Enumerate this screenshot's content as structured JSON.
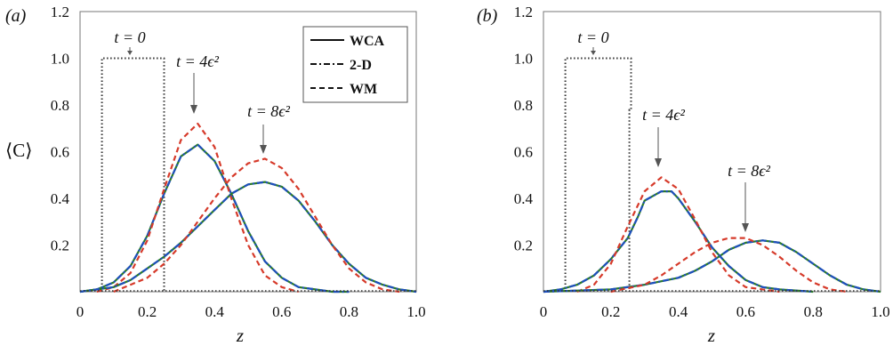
{
  "chart_data": [
    {
      "type": "line",
      "panel_label": "(a)",
      "xlabel": "z",
      "ylabel": "⟨C⟩",
      "xlim": [
        0,
        1.0
      ],
      "ylim": [
        0,
        1.2
      ],
      "x_ticks": [
        "0",
        "0.2",
        "0.4",
        "0.6",
        "0.8",
        "1.0"
      ],
      "y_ticks": [
        "0.2",
        "0.4",
        "0.6",
        "0.8",
        "1.0",
        "1.2"
      ],
      "legend": {
        "position": "top-right",
        "entries": [
          {
            "label": "WCA",
            "style": "solid"
          },
          {
            "label": "2-D",
            "style": "dashdot"
          },
          {
            "label": "WM",
            "style": "dashed"
          }
        ]
      },
      "annotations": [
        {
          "text": "t = 0",
          "x": 0.16,
          "y": 1.08
        },
        {
          "text": "t = 4ϵ²",
          "x": 0.35,
          "y": 1.0
        },
        {
          "text": "t = 8ϵ²",
          "x": 0.55,
          "y": 0.82
        }
      ],
      "series": [
        {
          "name": "t = 0",
          "color": "#333333",
          "style": "dotted",
          "step": true,
          "x": [
            0.065,
            0.065,
            0.25,
            0.25
          ],
          "y": [
            0,
            1.0,
            1.0,
            0
          ]
        },
        {
          "name": "t = 4ϵ² WCA",
          "color": "#2a7a2a",
          "style": "solid",
          "x": [
            0,
            0.05,
            0.1,
            0.15,
            0.2,
            0.25,
            0.3,
            0.35,
            0.4,
            0.45,
            0.5,
            0.55,
            0.6,
            0.65,
            0.7,
            0.75,
            0.8
          ],
          "y": [
            0.0,
            0.01,
            0.04,
            0.11,
            0.24,
            0.42,
            0.58,
            0.63,
            0.56,
            0.42,
            0.26,
            0.13,
            0.06,
            0.02,
            0.01,
            0.0,
            0.0
          ]
        },
        {
          "name": "t = 4ϵ² 2-D",
          "color": "#1f4fbf",
          "style": "dashdot",
          "x": [
            0,
            0.05,
            0.1,
            0.15,
            0.2,
            0.25,
            0.3,
            0.35,
            0.4,
            0.45,
            0.5,
            0.55,
            0.6,
            0.65,
            0.7,
            0.75,
            0.8
          ],
          "y": [
            0.0,
            0.01,
            0.04,
            0.11,
            0.24,
            0.42,
            0.58,
            0.63,
            0.56,
            0.42,
            0.26,
            0.13,
            0.06,
            0.02,
            0.01,
            0.0,
            0.0
          ]
        },
        {
          "name": "t = 4ϵ² WM",
          "color": "#d63a2a",
          "style": "dashed",
          "x": [
            0.05,
            0.1,
            0.15,
            0.2,
            0.25,
            0.3,
            0.35,
            0.4,
            0.45,
            0.5,
            0.55,
            0.6,
            0.65
          ],
          "y": [
            0.0,
            0.02,
            0.08,
            0.22,
            0.44,
            0.65,
            0.72,
            0.62,
            0.4,
            0.2,
            0.07,
            0.02,
            0.0
          ]
        },
        {
          "name": "t = 8ϵ² WCA",
          "color": "#2a7a2a",
          "style": "solid",
          "x": [
            0,
            0.1,
            0.15,
            0.2,
            0.25,
            0.3,
            0.35,
            0.4,
            0.45,
            0.5,
            0.55,
            0.6,
            0.65,
            0.7,
            0.75,
            0.8,
            0.85,
            0.9,
            0.95,
            1.0
          ],
          "y": [
            0.0,
            0.02,
            0.05,
            0.1,
            0.15,
            0.21,
            0.28,
            0.35,
            0.42,
            0.46,
            0.47,
            0.45,
            0.39,
            0.3,
            0.2,
            0.12,
            0.06,
            0.03,
            0.01,
            0.0
          ]
        },
        {
          "name": "t = 8ϵ² 2-D",
          "color": "#1f4fbf",
          "style": "dashdot",
          "x": [
            0,
            0.1,
            0.15,
            0.2,
            0.25,
            0.3,
            0.35,
            0.4,
            0.45,
            0.5,
            0.55,
            0.6,
            0.65,
            0.7,
            0.75,
            0.8,
            0.85,
            0.9,
            0.95,
            1.0
          ],
          "y": [
            0.0,
            0.02,
            0.05,
            0.1,
            0.15,
            0.21,
            0.28,
            0.35,
            0.42,
            0.46,
            0.47,
            0.45,
            0.39,
            0.3,
            0.2,
            0.12,
            0.06,
            0.03,
            0.01,
            0.0
          ]
        },
        {
          "name": "t = 8ϵ² WM",
          "color": "#d63a2a",
          "style": "dashed",
          "x": [
            0.1,
            0.2,
            0.25,
            0.3,
            0.35,
            0.4,
            0.45,
            0.5,
            0.55,
            0.6,
            0.65,
            0.7,
            0.75,
            0.8,
            0.85,
            0.9,
            0.95
          ],
          "y": [
            0.0,
            0.06,
            0.12,
            0.2,
            0.3,
            0.4,
            0.49,
            0.55,
            0.57,
            0.53,
            0.44,
            0.32,
            0.2,
            0.1,
            0.04,
            0.01,
            0.0
          ]
        }
      ]
    },
    {
      "type": "line",
      "panel_label": "(b)",
      "xlabel": "z",
      "ylabel": "",
      "xlim": [
        0,
        1.0
      ],
      "ylim": [
        0,
        1.2
      ],
      "x_ticks": [
        "0",
        "0.2",
        "0.4",
        "0.6",
        "0.8",
        "1.0"
      ],
      "y_ticks": [
        "0.2",
        "0.4",
        "0.6",
        "0.8",
        "1.0",
        "1.2"
      ],
      "annotations": [
        {
          "text": "t = 0",
          "x": 0.15,
          "y": 1.08
        },
        {
          "text": "t = 4ϵ²",
          "x": 0.35,
          "y": 0.78
        },
        {
          "text": "t = 8ϵ²",
          "x": 0.62,
          "y": 0.5
        }
      ],
      "series": [
        {
          "name": "t = 0",
          "color": "#333333",
          "style": "dotted",
          "step": true,
          "x": [
            0.065,
            0.065,
            0.26,
            0.26,
            0.255,
            0.255
          ],
          "y": [
            0,
            1.0,
            1.0,
            0.78,
            0.78,
            0
          ]
        },
        {
          "name": "t = 4ϵ² WCA",
          "color": "#2a7a2a",
          "style": "solid",
          "x": [
            0,
            0.05,
            0.1,
            0.15,
            0.2,
            0.25,
            0.28,
            0.3,
            0.35,
            0.38,
            0.4,
            0.45,
            0.5,
            0.55,
            0.6,
            0.65,
            0.7,
            0.8
          ],
          "y": [
            0.0,
            0.01,
            0.03,
            0.07,
            0.14,
            0.23,
            0.32,
            0.39,
            0.43,
            0.43,
            0.4,
            0.3,
            0.19,
            0.11,
            0.05,
            0.02,
            0.01,
            0.0
          ]
        },
        {
          "name": "t = 4ϵ² 2-D",
          "color": "#1f4fbf",
          "style": "dashdot",
          "x": [
            0,
            0.05,
            0.1,
            0.15,
            0.2,
            0.25,
            0.28,
            0.3,
            0.35,
            0.38,
            0.4,
            0.45,
            0.5,
            0.55,
            0.6,
            0.65,
            0.7,
            0.8
          ],
          "y": [
            0.0,
            0.01,
            0.03,
            0.07,
            0.14,
            0.23,
            0.32,
            0.39,
            0.43,
            0.43,
            0.4,
            0.3,
            0.19,
            0.11,
            0.05,
            0.02,
            0.01,
            0.0
          ]
        },
        {
          "name": "t = 4ϵ² WM",
          "color": "#d63a2a",
          "style": "dashed",
          "x": [
            0.1,
            0.15,
            0.2,
            0.25,
            0.3,
            0.35,
            0.4,
            0.45,
            0.5,
            0.55,
            0.6,
            0.7
          ],
          "y": [
            0.0,
            0.03,
            0.12,
            0.28,
            0.43,
            0.49,
            0.44,
            0.31,
            0.17,
            0.07,
            0.02,
            0.0
          ]
        },
        {
          "name": "t = 8ϵ² WCA",
          "color": "#2a7a2a",
          "style": "solid",
          "x": [
            0,
            0.1,
            0.2,
            0.3,
            0.4,
            0.45,
            0.5,
            0.55,
            0.6,
            0.65,
            0.7,
            0.75,
            0.8,
            0.85,
            0.9,
            0.95,
            1.0
          ],
          "y": [
            0.0,
            0.005,
            0.01,
            0.03,
            0.06,
            0.09,
            0.13,
            0.18,
            0.21,
            0.22,
            0.21,
            0.17,
            0.12,
            0.07,
            0.03,
            0.01,
            0.0
          ]
        },
        {
          "name": "t = 8ϵ² 2-D",
          "color": "#1f4fbf",
          "style": "dashdot",
          "x": [
            0,
            0.1,
            0.2,
            0.3,
            0.4,
            0.45,
            0.5,
            0.55,
            0.6,
            0.65,
            0.7,
            0.75,
            0.8,
            0.85,
            0.9,
            0.95,
            1.0
          ],
          "y": [
            0.0,
            0.005,
            0.01,
            0.03,
            0.06,
            0.09,
            0.13,
            0.18,
            0.21,
            0.22,
            0.21,
            0.17,
            0.12,
            0.07,
            0.03,
            0.01,
            0.0
          ]
        },
        {
          "name": "t = 8ϵ² WM",
          "color": "#d63a2a",
          "style": "dashed",
          "x": [
            0.2,
            0.3,
            0.35,
            0.4,
            0.45,
            0.5,
            0.55,
            0.6,
            0.65,
            0.7,
            0.75,
            0.8,
            0.85,
            0.9
          ],
          "y": [
            0.0,
            0.03,
            0.07,
            0.12,
            0.17,
            0.21,
            0.23,
            0.23,
            0.2,
            0.15,
            0.09,
            0.04,
            0.01,
            0.0
          ]
        }
      ]
    }
  ]
}
